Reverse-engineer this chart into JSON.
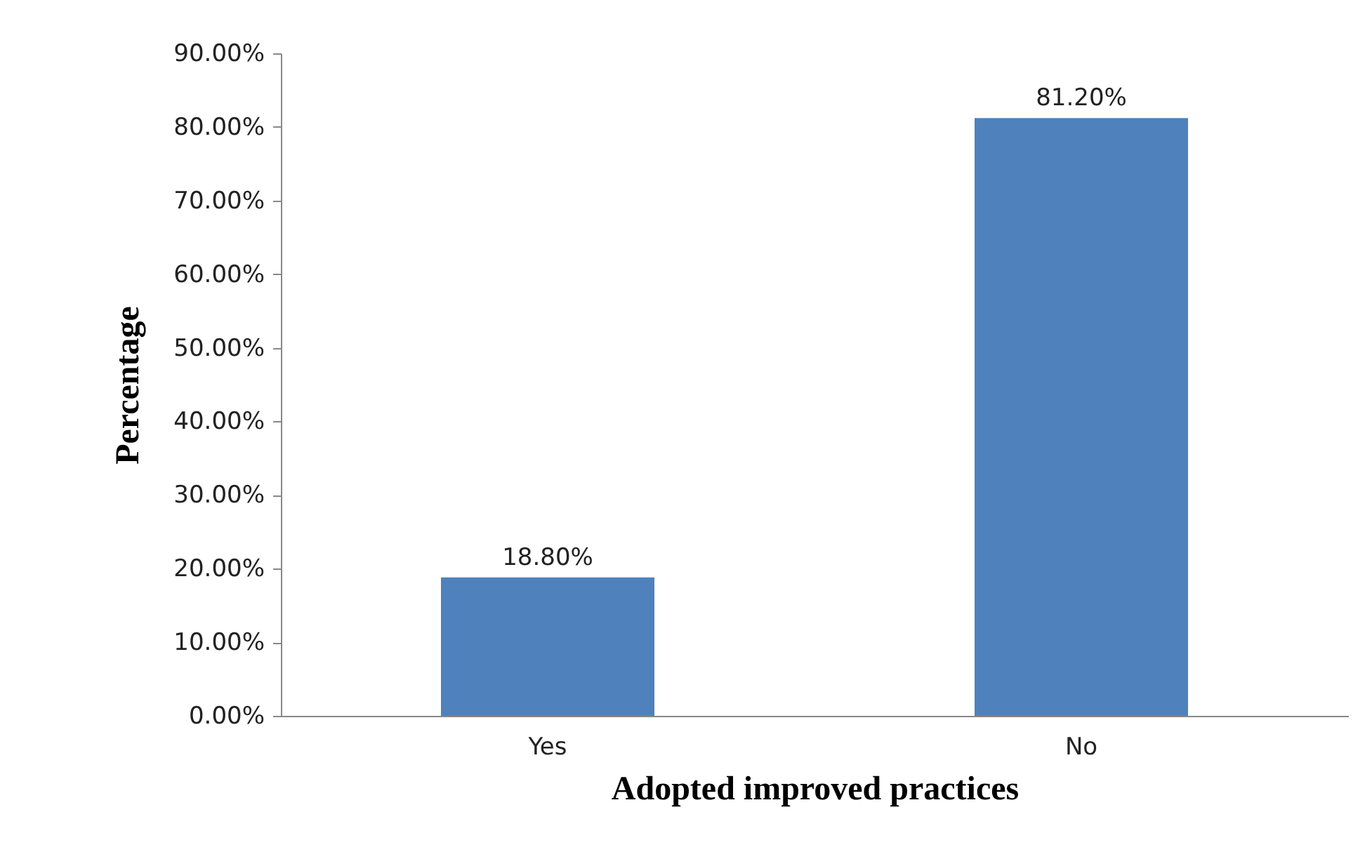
{
  "chart_data": {
    "type": "bar",
    "xlabel": "Adopted improved practices",
    "ylabel": "Percentage",
    "categories": [
      "Yes",
      "No"
    ],
    "values": [
      18.8,
      81.2
    ],
    "color": "#4f81bd",
    "value_labels": [
      "18.80%",
      "81.20%"
    ],
    "ylim": [
      0,
      90
    ],
    "yticks": [
      {
        "value": 0,
        "label": "0.00%"
      },
      {
        "value": 10,
        "label": "10.00%"
      },
      {
        "value": 20,
        "label": "20.00%"
      },
      {
        "value": 30,
        "label": "30.00%"
      },
      {
        "value": 40,
        "label": "40.00%"
      },
      {
        "value": 50,
        "label": "50.00%"
      },
      {
        "value": 60,
        "label": "60.00%"
      },
      {
        "value": 70,
        "label": "70.00%"
      },
      {
        "value": 80,
        "label": "80.00%"
      },
      {
        "value": 90,
        "label": "90.00%"
      }
    ],
    "grid": false
  }
}
